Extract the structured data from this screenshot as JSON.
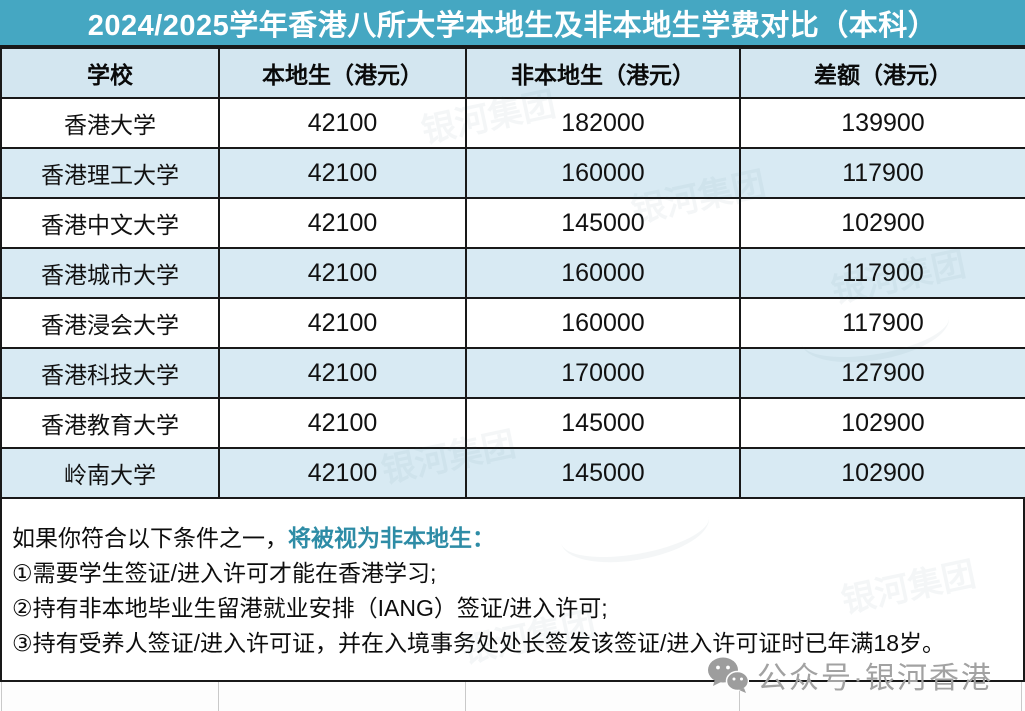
{
  "title": "2024/2025学年香港八所大学本地生及非本地生学费对比（本科）",
  "table": {
    "headers": [
      "学校",
      "本地生（港元）",
      "非本地生（港元）",
      "差额（港元）"
    ],
    "rows": [
      {
        "school": "香港大学",
        "local": "42100",
        "nonlocal": "182000",
        "diff": "139900"
      },
      {
        "school": "香港理工大学",
        "local": "42100",
        "nonlocal": "160000",
        "diff": "117900"
      },
      {
        "school": "香港中文大学",
        "local": "42100",
        "nonlocal": "145000",
        "diff": "102900"
      },
      {
        "school": "香港城市大学",
        "local": "42100",
        "nonlocal": "160000",
        "diff": "117900"
      },
      {
        "school": "香港浸会大学",
        "local": "42100",
        "nonlocal": "160000",
        "diff": "117900"
      },
      {
        "school": "香港科技大学",
        "local": "42100",
        "nonlocal": "170000",
        "diff": "127900"
      },
      {
        "school": "香港教育大学",
        "local": "42100",
        "nonlocal": "145000",
        "diff": "102900"
      },
      {
        "school": "岭南大学",
        "local": "42100",
        "nonlocal": "145000",
        "diff": "102900"
      }
    ]
  },
  "notes": {
    "intro_plain": "如果你符合以下条件之一，",
    "intro_highlight": "将被视为非本地生：",
    "items": [
      "①需要学生签证/进入许可才能在香港学习;",
      "②持有非本地毕业生留港就业安排（IANG）签证/进入许可;",
      "③持有受养人签证/进入许可证，并在入境事务处处长签发该签证/进入许可证时已年满18岁。"
    ]
  },
  "watermark": {
    "icon": "wechat-icon",
    "label": "公众号·银河香港",
    "faint_text": "银河集团"
  },
  "colors": {
    "title_bar": "#45a7c2",
    "header_bg": "#d3e6f0",
    "stripe_bg": "#d8eaf3",
    "border": "#191919",
    "highlight_text": "#2e8ca6",
    "watermark_gray": "#a2a2a2"
  },
  "chart_data": {
    "type": "table",
    "title": "2024/2025学年香港八所大学本地生及非本地生学费对比（本科）",
    "columns": [
      "学校",
      "本地生（港元）",
      "非本地生（港元）",
      "差额（港元）"
    ],
    "rows": [
      [
        "香港大学",
        42100,
        182000,
        139900
      ],
      [
        "香港理工大学",
        42100,
        160000,
        117900
      ],
      [
        "香港中文大学",
        42100,
        145000,
        102900
      ],
      [
        "香港城市大学",
        42100,
        160000,
        117900
      ],
      [
        "香港浸会大学",
        42100,
        160000,
        117900
      ],
      [
        "香港科技大学",
        42100,
        170000,
        127900
      ],
      [
        "香港教育大学",
        42100,
        145000,
        102900
      ],
      [
        "岭南大学",
        42100,
        145000,
        102900
      ]
    ]
  }
}
